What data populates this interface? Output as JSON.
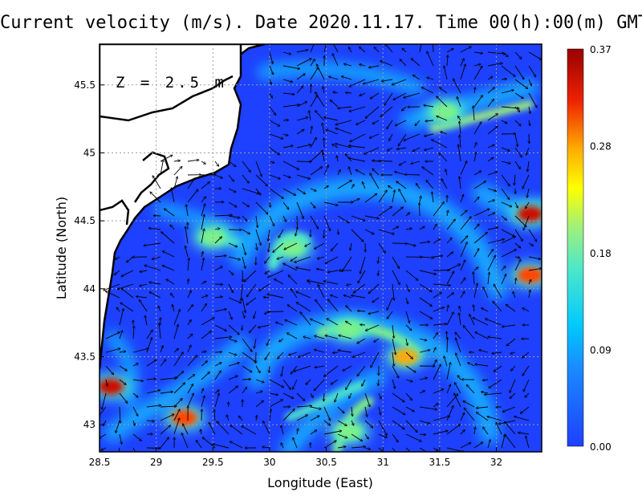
{
  "chart_data": {
    "type": "heatmap",
    "title": "Current velocity (m/s). Date 2020.11.17. Time 00(h):00(m) GMT",
    "xlabel": "Longitude (East)",
    "ylabel": "Latitude (North)",
    "xlim": [
      28.5,
      32.4
    ],
    "ylim": [
      42.8,
      45.8
    ],
    "x_ticks": [
      "28.5",
      "29",
      "29.5",
      "30",
      "30.5",
      "31",
      "31.5",
      "32"
    ],
    "y_ticks": [
      "43",
      "43.5",
      "44",
      "44.5",
      "45",
      "45.5"
    ],
    "annotation": "Z = 2.5 m",
    "grid": true,
    "colorbar": {
      "min": 0.0,
      "max": 0.37,
      "ticks": [
        "0.00",
        "0.09",
        "0.18",
        "0.28",
        "0.37"
      ],
      "colors": [
        "#1e40ff",
        "#00c8ff",
        "#7cf08a",
        "#ffff00",
        "#ff9900",
        "#e81a00",
        "#990000"
      ]
    },
    "hotspots": [
      {
        "lon": 32.3,
        "lat": 44.55,
        "speed": 0.34
      },
      {
        "lon": 32.3,
        "lat": 44.1,
        "speed": 0.3
      },
      {
        "lon": 28.6,
        "lat": 43.28,
        "speed": 0.32
      },
      {
        "lon": 29.25,
        "lat": 43.05,
        "speed": 0.3
      },
      {
        "lon": 31.2,
        "lat": 43.5,
        "speed": 0.26
      },
      {
        "lon": 31.55,
        "lat": 45.3,
        "speed": 0.2
      },
      {
        "lon": 30.2,
        "lat": 44.3,
        "speed": 0.18
      },
      {
        "lon": 30.7,
        "lat": 43.7,
        "speed": 0.2
      },
      {
        "lon": 29.5,
        "lat": 44.38,
        "speed": 0.15
      },
      {
        "lon": 30.7,
        "lat": 42.95,
        "speed": 0.18
      }
    ]
  }
}
